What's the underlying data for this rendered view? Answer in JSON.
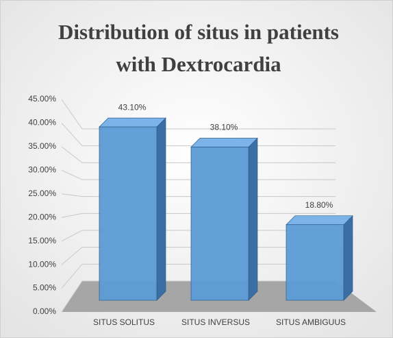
{
  "chart_data": {
    "type": "bar3d",
    "title": "Distribution of situs in patients with Dextrocardia",
    "categories": [
      "SITUS SOLITUS",
      "SITUS INVERSUS",
      "SITUS AMBIGUUS"
    ],
    "values": [
      43.1,
      38.1,
      18.8
    ],
    "value_labels": [
      "43.10%",
      "38.10%",
      "18.80%"
    ],
    "color": "#5b9bd5",
    "ylim": [
      0,
      45
    ],
    "yticks": [
      {
        "value": 0,
        "label": "0.00%"
      },
      {
        "value": 5,
        "label": "5.00%"
      },
      {
        "value": 10,
        "label": "10.00%"
      },
      {
        "value": 15,
        "label": "15.00%"
      },
      {
        "value": 20,
        "label": "20.00%"
      },
      {
        "value": 25,
        "label": "25.00%"
      },
      {
        "value": 30,
        "label": "30.00%"
      },
      {
        "value": 35,
        "label": "35.00%"
      },
      {
        "value": 40,
        "label": "40.00%"
      },
      {
        "value": 45,
        "label": "45.00%"
      }
    ],
    "grid": true
  }
}
